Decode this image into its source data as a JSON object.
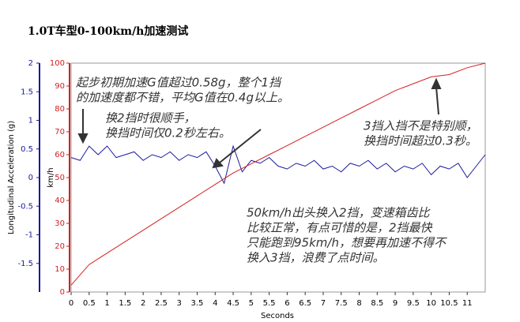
{
  "chart_data": {
    "type": "line",
    "title": "1.0T车型0-100km/h加速测试",
    "xlabel": "Seconds",
    "ylabel": "Longitudinal Acceleration (g)",
    "y2label": "km/h",
    "xlim": [
      0,
      11.5
    ],
    "xticks": [
      0,
      0.5,
      1,
      1.5,
      2,
      2.5,
      3,
      3.5,
      4,
      4.5,
      5,
      5.5,
      6,
      6.5,
      7,
      7.5,
      8,
      8.5,
      9,
      9.5,
      10,
      10.5,
      11
    ],
    "ylim": [
      -2,
      2
    ],
    "yticks": [
      -1.5,
      -1,
      -0.5,
      0,
      0.5,
      1,
      1.5,
      2
    ],
    "y2lim": [
      0,
      100
    ],
    "y2ticks": [
      0,
      10,
      20,
      30,
      40,
      50,
      60,
      70,
      80,
      90,
      100
    ],
    "series": [
      {
        "color": "#1a1a9c",
        "x": [
          0,
          0.25,
          0.5,
          0.75,
          1,
          1.25,
          1.5,
          1.75,
          2,
          2.25,
          2.5,
          2.75,
          3,
          3.25,
          3.5,
          3.75,
          4,
          4.25,
          4.5,
          4.75,
          5,
          5.25,
          5.5,
          5.75,
          6,
          6.25,
          6.5,
          6.75,
          7,
          7.25,
          7.5,
          7.75,
          8,
          8.25,
          8.5,
          8.75,
          9,
          9.25,
          9.5,
          9.75,
          10,
          10.25,
          10.5,
          10.75,
          11,
          11.25,
          11.5
        ],
        "values": [
          0.35,
          0.3,
          0.55,
          0.4,
          0.55,
          0.35,
          0.4,
          0.45,
          0.3,
          0.4,
          0.35,
          0.45,
          0.3,
          0.4,
          0.35,
          0.45,
          0.2,
          -0.1,
          0.55,
          0.1,
          0.3,
          0.25,
          0.35,
          0.2,
          0.15,
          0.25,
          0.2,
          0.3,
          0.15,
          0.2,
          0.1,
          0.25,
          0.2,
          0.3,
          0.15,
          0.25,
          0.1,
          0.2,
          0.15,
          0.25,
          0.05,
          0.2,
          0.15,
          0.25,
          0.0,
          0.2,
          0.4
        ]
      },
      {
        "color": "#d42020",
        "axis": "y2",
        "x": [
          0,
          0.5,
          1,
          1.5,
          2,
          2.5,
          3,
          3.5,
          4,
          4.5,
          5,
          5.5,
          6,
          6.5,
          7,
          7.5,
          8,
          8.5,
          9,
          9.5,
          10,
          10.5,
          11,
          11.5
        ],
        "values": [
          3,
          12,
          17,
          22,
          27,
          32,
          37,
          42,
          47,
          52,
          56,
          60,
          64,
          68,
          72,
          76,
          80,
          84,
          88,
          91,
          94,
          95,
          98,
          100
        ]
      }
    ],
    "annotations": [
      {
        "lines": [
          "起步初期加速G值超过0.58g，整个1挡",
          "的加速度都不错，平均G值在0.4g以上。"
        ]
      },
      {
        "lines": [
          "换2挡时很顺手，",
          "换挡时间仅0.2秒左右。"
        ]
      },
      {
        "lines": [
          "3挡入挡不是特别顺，",
          "换挡时间超过0.3秒。"
        ]
      },
      {
        "lines": [
          "50km/h出头换入2挡，变速箱齿比",
          "比较正常，有点可惜的是，2挡最快",
          "只能跑到95km/h，想要再加速不得不",
          "换入3挡，浪费了点时间。"
        ]
      }
    ]
  }
}
